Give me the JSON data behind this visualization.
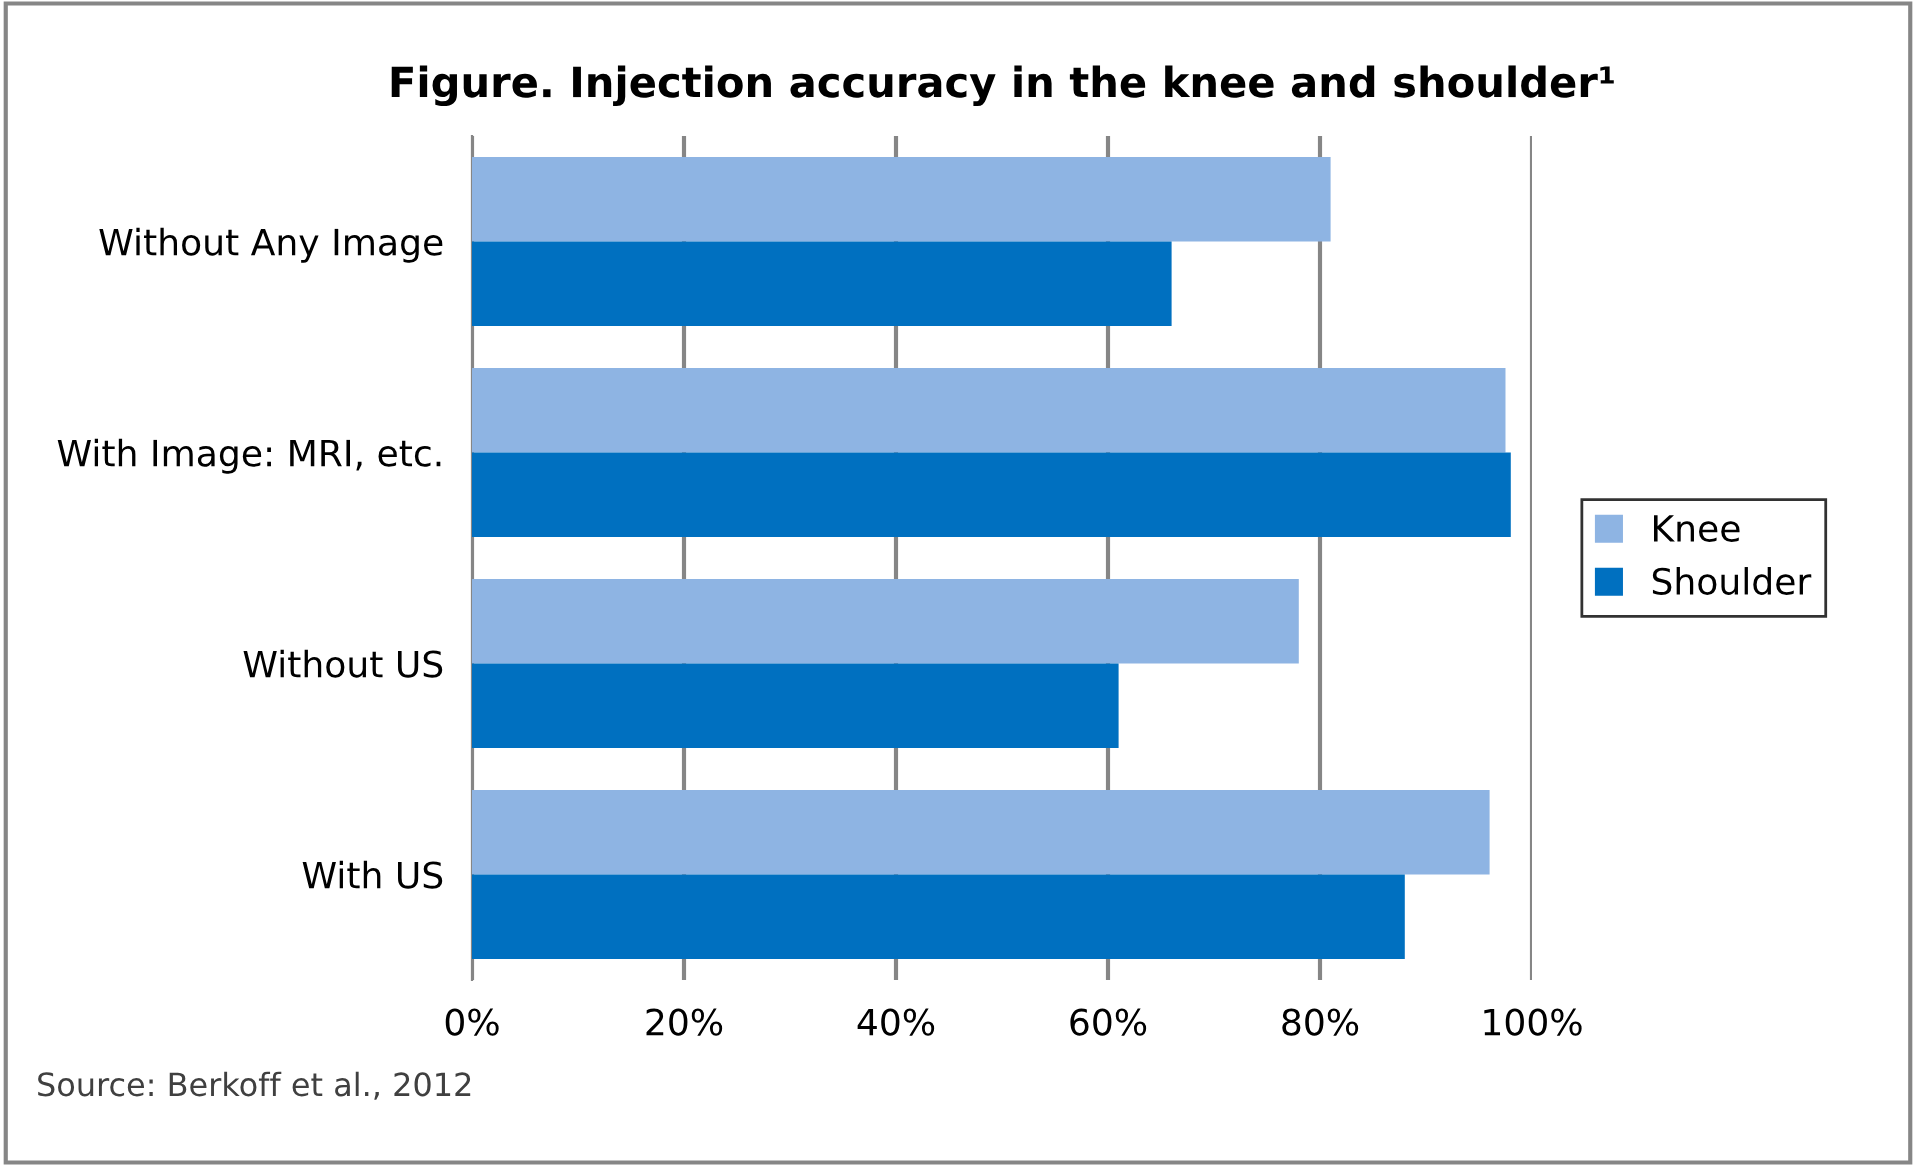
{
  "chart_data": {
    "type": "bar",
    "orientation": "horizontal",
    "title": "Figure. Injection accuracy in the knee and shoulder¹",
    "categories": [
      "Without Any Image",
      "With Image: MRI, etc.",
      "Without US",
      "With US"
    ],
    "series": [
      {
        "name": "Knee",
        "color": "#8eb4e3",
        "values": [
          81,
          97.5,
          78,
          96
        ]
      },
      {
        "name": "Shoulder",
        "color": "#0070c0",
        "values": [
          66,
          98,
          61,
          88
        ]
      }
    ],
    "xlim": [
      0,
      100
    ],
    "xticks": [
      {
        "value": 0,
        "label": "0%"
      },
      {
        "value": 20,
        "label": "20%"
      },
      {
        "value": 40,
        "label": "40%"
      },
      {
        "value": 60,
        "label": "60%"
      },
      {
        "value": 80,
        "label": "80%"
      },
      {
        "value": 100,
        "label": "100%"
      }
    ],
    "grid": "x",
    "legend": "right",
    "annotations": [
      "Source: Berkoff et al., 2012"
    ]
  }
}
